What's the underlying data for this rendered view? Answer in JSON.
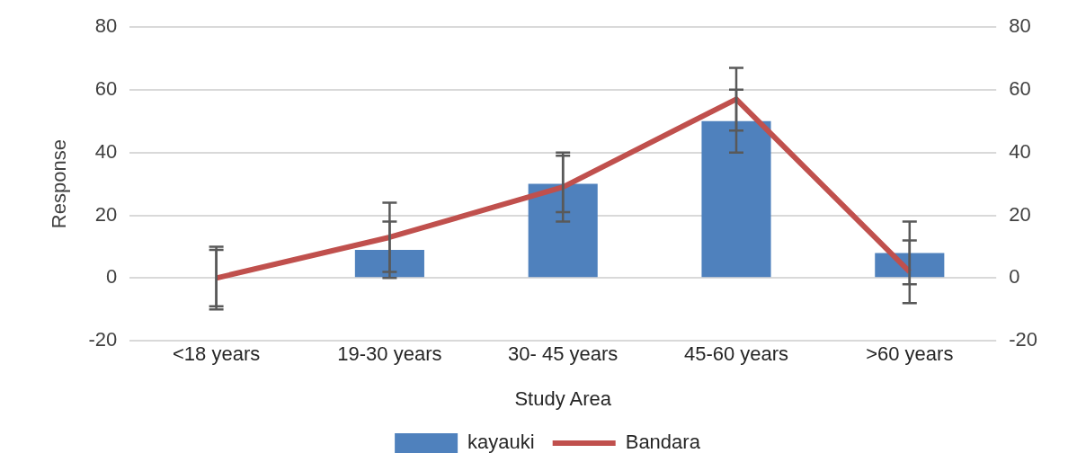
{
  "chart_data": {
    "type": "bar",
    "xlabel": "Study Area",
    "ylabel": "Response",
    "categories": [
      "<18 years",
      "19-30 years",
      "30- 45 years",
      "45-60 years",
      ">60 years"
    ],
    "series": [
      {
        "name": "kayauki",
        "color": "#4f81bd",
        "values": [
          0,
          9,
          30,
          50,
          8
        ],
        "errors": [
          9,
          9,
          9,
          10,
          10
        ]
      },
      {
        "name": "Bandara",
        "type": "line",
        "color": "#c0504d",
        "values": [
          0,
          13,
          29,
          57,
          2
        ],
        "errors": [
          10,
          11,
          11,
          10,
          10
        ]
      }
    ],
    "ylim": [
      -20,
      80
    ],
    "yticks": [
      -20,
      0,
      20,
      40,
      60,
      80
    ],
    "y2lim": [
      -20,
      80
    ],
    "y2ticks": [
      -20,
      0,
      20,
      40,
      60,
      80
    ],
    "grid": "y",
    "legend": "bottom",
    "marker": "none",
    "line_style": "solid"
  }
}
